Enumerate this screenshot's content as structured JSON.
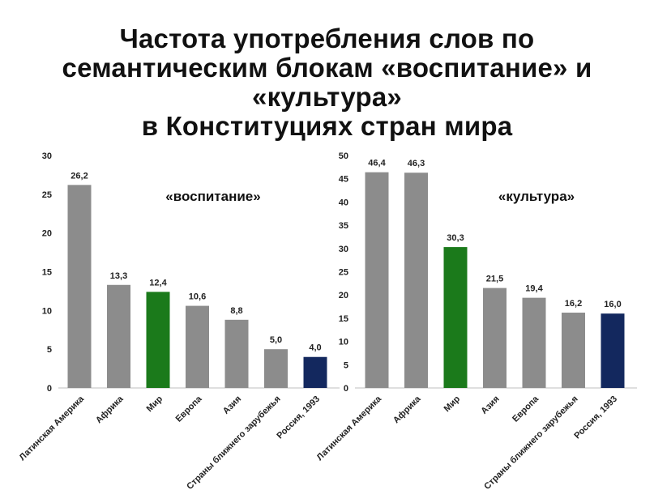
{
  "title_lines": [
    "Частота употребления слов по",
    "семантическим блокам «воспитание» и",
    "«культура»",
    "в Конституциях стран мира"
  ],
  "chart_data": [
    {
      "type": "bar",
      "annotation": "«воспитание»",
      "categories": [
        "Латинская Америка",
        "Африка",
        "Мир",
        "Европа",
        "Азия",
        "Страны ближнего зарубежья",
        "Россия, 1993"
      ],
      "values": [
        26.2,
        13.3,
        12.4,
        10.6,
        8.8,
        5.0,
        4.0
      ],
      "value_labels": [
        "26,2",
        "13,3",
        "12,4",
        "10,6",
        "8,8",
        "5,0",
        "4,0"
      ],
      "bar_colors": [
        "#8c8c8c",
        "#8c8c8c",
        "#1b7a1b",
        "#8c8c8c",
        "#8c8c8c",
        "#8c8c8c",
        "#13285e"
      ],
      "ylim": [
        0,
        30
      ],
      "yticks": [
        0,
        5,
        10,
        15,
        20,
        25,
        30
      ],
      "xlabel": "",
      "ylabel": "",
      "grid": false
    },
    {
      "type": "bar",
      "annotation": "«культура»",
      "categories": [
        "Латинская Америка",
        "Африка",
        "Мир",
        "Азия",
        "Европа",
        "Страны ближнего зарубежья",
        "Россия, 1993"
      ],
      "values": [
        46.4,
        46.3,
        30.3,
        21.5,
        19.4,
        16.2,
        16.0
      ],
      "value_labels": [
        "46,4",
        "46,3",
        "30,3",
        "21,5",
        "19,4",
        "16,2",
        "16,0"
      ],
      "bar_colors": [
        "#8c8c8c",
        "#8c8c8c",
        "#1b7a1b",
        "#8c8c8c",
        "#8c8c8c",
        "#8c8c8c",
        "#13285e"
      ],
      "ylim": [
        0,
        50
      ],
      "yticks": [
        0,
        5,
        10,
        15,
        20,
        25,
        30,
        35,
        40,
        45,
        50
      ],
      "xlabel": "",
      "ylabel": "",
      "grid": false
    }
  ]
}
